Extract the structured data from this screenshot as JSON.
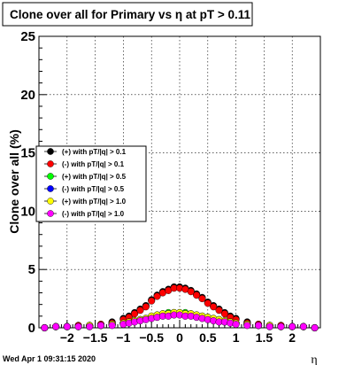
{
  "title": "Clone  over all for Primary vs   η at pT > 0.11",
  "timestamp": "Wed Apr  1 09:31:15 2020",
  "chart_data": {
    "type": "scatter",
    "title": "Clone  over all for Primary vs   η at pT > 0.11",
    "xlabel": "η",
    "ylabel": "Clone  over all (%)",
    "xlim": [
      -2.5,
      2.5
    ],
    "ylim": [
      0,
      25
    ],
    "grid": true,
    "legend_position": "middle-left",
    "x_ticks": [
      -2,
      -1.5,
      -1,
      -0.5,
      0,
      0.5,
      1,
      1.5,
      2
    ],
    "x_tick_labels": [
      "−2",
      "−1.5",
      "−1",
      "−0.5",
      "0",
      "0.5",
      "1",
      "1.5",
      "2"
    ],
    "y_ticks": [
      0,
      5,
      10,
      15,
      20,
      25
    ],
    "y_tick_labels": [
      "0",
      "5",
      "10",
      "15",
      "20",
      "25"
    ],
    "x": [
      -2.4,
      -2.2,
      -2.0,
      -1.8,
      -1.6,
      -1.4,
      -1.2,
      -1.0,
      -0.9,
      -0.8,
      -0.7,
      -0.6,
      -0.5,
      -0.4,
      -0.3,
      -0.2,
      -0.1,
      0.0,
      0.1,
      0.2,
      0.3,
      0.4,
      0.5,
      0.6,
      0.7,
      0.8,
      0.9,
      1.0,
      1.2,
      1.4,
      1.6,
      1.8,
      2.0,
      2.2,
      2.4
    ],
    "series": [
      {
        "name": "(+) with pT/|q| > 0.1",
        "color": "#000000",
        "values": [
          0.0,
          0.1,
          0.1,
          0.2,
          0.2,
          0.3,
          0.5,
          0.8,
          1.0,
          1.3,
          1.6,
          1.9,
          2.4,
          2.8,
          3.1,
          3.3,
          3.5,
          3.5,
          3.4,
          3.2,
          2.9,
          2.6,
          2.2,
          1.9,
          1.6,
          1.3,
          1.0,
          0.8,
          0.5,
          0.3,
          0.2,
          0.2,
          0.1,
          0.1,
          0.0
        ]
      },
      {
        "name": "(-) with pT/|q| > 0.1",
        "color": "#ff0000",
        "values": [
          0.0,
          0.1,
          0.1,
          0.2,
          0.2,
          0.3,
          0.4,
          0.7,
          0.9,
          1.2,
          1.5,
          1.8,
          2.3,
          2.7,
          3.0,
          3.2,
          3.4,
          3.4,
          3.3,
          3.1,
          2.8,
          2.5,
          2.1,
          1.8,
          1.5,
          1.2,
          0.9,
          0.7,
          0.4,
          0.3,
          0.2,
          0.2,
          0.1,
          0.1,
          0.0
        ]
      },
      {
        "name": "(+) with pT/|q| > 0.5",
        "color": "#00ff00",
        "values": [
          0.0,
          0.1,
          0.1,
          0.1,
          0.2,
          0.2,
          0.3,
          0.4,
          0.5,
          0.6,
          0.7,
          0.8,
          1.0,
          1.1,
          1.2,
          1.3,
          1.3,
          1.3,
          1.3,
          1.2,
          1.1,
          1.0,
          0.9,
          0.8,
          0.7,
          0.6,
          0.5,
          0.4,
          0.3,
          0.2,
          0.2,
          0.1,
          0.1,
          0.1,
          0.0
        ]
      },
      {
        "name": "(-) with pT/|q| > 0.5",
        "color": "#0000ff",
        "values": [
          0.0,
          0.1,
          0.1,
          0.1,
          0.1,
          0.2,
          0.3,
          0.4,
          0.5,
          0.6,
          0.7,
          0.8,
          0.9,
          1.0,
          1.1,
          1.2,
          1.2,
          1.2,
          1.2,
          1.1,
          1.0,
          0.9,
          0.8,
          0.7,
          0.6,
          0.5,
          0.5,
          0.4,
          0.3,
          0.2,
          0.1,
          0.1,
          0.1,
          0.1,
          0.0
        ]
      },
      {
        "name": "(+) with pT/|q| > 1.0",
        "color": "#ffff00",
        "values": [
          0.0,
          0.1,
          0.1,
          0.1,
          0.2,
          0.2,
          0.3,
          0.4,
          0.5,
          0.6,
          0.7,
          0.8,
          1.0,
          1.1,
          1.2,
          1.2,
          1.3,
          1.3,
          1.2,
          1.2,
          1.1,
          1.0,
          0.9,
          0.8,
          0.7,
          0.6,
          0.5,
          0.4,
          0.3,
          0.2,
          0.2,
          0.1,
          0.1,
          0.1,
          0.0
        ]
      },
      {
        "name": "(-) with pT/|q| > 1.0",
        "color": "#ff00ff",
        "values": [
          0.0,
          0.1,
          0.1,
          0.1,
          0.1,
          0.2,
          0.2,
          0.3,
          0.4,
          0.5,
          0.6,
          0.7,
          0.8,
          0.9,
          1.0,
          1.0,
          1.1,
          1.1,
          1.0,
          1.0,
          0.9,
          0.8,
          0.7,
          0.6,
          0.5,
          0.5,
          0.4,
          0.3,
          0.2,
          0.2,
          0.1,
          0.1,
          0.1,
          0.1,
          0.0
        ]
      }
    ]
  }
}
